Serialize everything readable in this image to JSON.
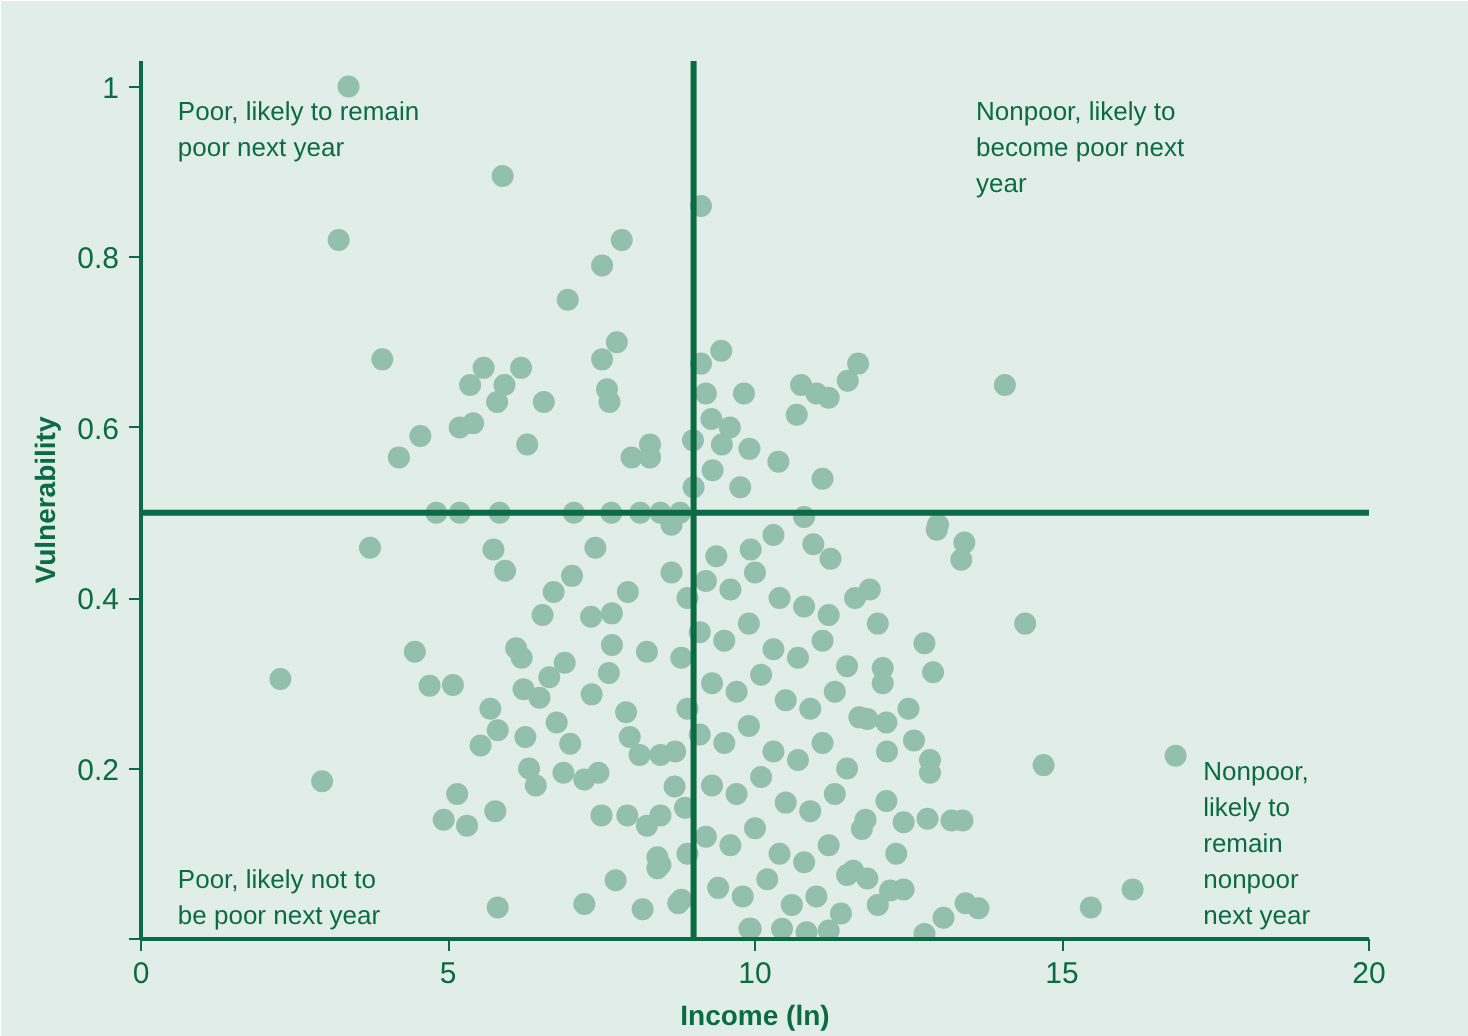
{
  "chart_data": {
    "type": "scatter",
    "xlabel": "Income (ln)",
    "ylabel": "Vulnerability",
    "xlim": [
      0,
      20
    ],
    "ylim": [
      0,
      1.03
    ],
    "xticks": [
      0,
      5,
      10,
      15,
      20
    ],
    "yticks": [
      {
        "value": 0,
        "label": null
      },
      {
        "value": 0.2,
        "label": "0.2"
      },
      {
        "value": 0.4,
        "label": "0.4"
      },
      {
        "value": 0.6,
        "label": "0.6"
      },
      {
        "value": 0.8,
        "label": "0.8"
      },
      {
        "value": 1,
        "label": "1"
      }
    ],
    "marker": "circle",
    "ref_lines": [
      {
        "axis": "x",
        "value": 9,
        "color": "#0b6b45"
      },
      {
        "axis": "y",
        "value": 0.5,
        "color": "#0b6b45"
      }
    ],
    "annotations": [
      "Poor, likely to remain poor next year",
      "Nonpoor, likely to become poor next year",
      "Poor, likely not to be poor next year",
      "Nonpoor, likely to remain nonpoor next year"
    ],
    "series": [
      {
        "color": "#93bfae",
        "x": [
          3.38,
          3.22,
          5.89,
          9.12,
          7.83,
          7.51,
          6.95,
          3.93,
          7.75,
          7.51,
          5.58,
          6.19,
          5.36,
          5.92,
          5.8,
          6.56,
          7.59,
          7.63,
          4.55,
          4.2,
          5.19,
          5.41,
          6.29,
          7.99,
          8.29,
          8.29,
          9.45,
          9.12,
          9.2,
          9.82,
          8.99,
          9.29,
          9.59,
          9.46,
          9.91,
          9.31,
          9.76,
          9.0,
          4.81,
          5.19,
          5.84,
          7.05,
          7.66,
          8.13,
          8.46,
          8.78,
          11.68,
          11.51,
          10.75,
          11.2,
          11.0,
          14.07,
          10.68,
          10.38,
          11.1,
          12.98,
          12.96,
          13.41,
          13.36,
          14.4,
          12.76,
          12.9,
          12.08,
          12.08,
          11.63,
          11.87,
          11.23,
          10.95,
          10.3,
          10.8,
          14.7,
          16.85,
          16.15,
          15.47,
          13.64,
          13.43,
          13.07,
          12.76,
          13.38,
          13.2,
          12.81,
          12.42,
          12.85,
          12.85,
          12.59,
          12.15,
          12.14,
          11.83,
          12.14,
          11.74,
          12.42,
          12.2,
          11.83,
          11.5,
          10.84,
          11.2,
          9.93,
          10.44,
          8.64,
          8.64,
          9.37,
          9.93,
          8.69,
          8.8,
          8.46,
          3.73,
          5.74,
          5.93,
          7.4,
          7.02,
          6.72,
          6.54,
          7.33,
          7.67,
          7.93,
          4.46,
          2.27,
          4.7,
          5.08,
          6.11,
          6.2,
          5.69,
          5.81,
          5.53,
          6.23,
          6.65,
          6.9,
          6.49,
          6.77,
          6.99,
          6.26,
          6.32,
          6.43,
          6.88,
          7.22,
          7.45,
          7.34,
          7.62,
          7.9,
          7.96,
          7.67,
          8.24,
          8.12,
          8.46,
          2.95,
          5.15,
          4.93,
          5.31,
          5.77,
          7.5,
          7.92,
          8.24,
          8.46,
          8.86,
          7.73,
          8.41,
          8.41,
          8.75,
          5.81,
          7.22,
          8.17,
          9.91,
          9.2,
          9.6,
          10.0,
          10.4,
          10.8,
          11.2,
          9.1,
          9.5,
          9.9,
          10.3,
          10.7,
          11.1,
          11.5,
          9.3,
          9.7,
          10.1,
          10.5,
          10.9,
          11.3,
          11.7,
          9.1,
          9.5,
          9.9,
          10.3,
          10.7,
          11.1,
          11.5,
          9.3,
          9.7,
          10.1,
          10.5,
          10.9,
          11.3,
          11.8,
          9.2,
          9.6,
          10.0,
          10.4,
          10.8,
          11.2,
          11.6,
          9.4,
          9.8,
          10.2,
          10.6,
          11.0,
          11.4,
          12.0,
          8.9,
          8.8,
          8.9,
          8.7,
          8.9,
          12.3,
          12.5,
          12.0
        ],
        "values": [
          1.0,
          0.82,
          0.895,
          0.86,
          0.82,
          0.79,
          0.75,
          0.68,
          0.7,
          0.68,
          0.67,
          0.67,
          0.65,
          0.65,
          0.63,
          0.63,
          0.645,
          0.63,
          0.59,
          0.565,
          0.6,
          0.605,
          0.58,
          0.565,
          0.58,
          0.565,
          0.69,
          0.675,
          0.64,
          0.64,
          0.585,
          0.61,
          0.6,
          0.58,
          0.575,
          0.55,
          0.53,
          0.53,
          0.5,
          0.5,
          0.5,
          0.5,
          0.5,
          0.5,
          0.5,
          0.5,
          0.675,
          0.655,
          0.65,
          0.635,
          0.64,
          0.65,
          0.615,
          0.56,
          0.54,
          0.486,
          0.48,
          0.465,
          0.445,
          0.37,
          0.347,
          0.313,
          0.318,
          0.3,
          0.4,
          0.41,
          0.446,
          0.463,
          0.474,
          0.495,
          0.204,
          0.215,
          0.058,
          0.037,
          0.036,
          0.042,
          0.025,
          0.006,
          0.139,
          0.139,
          0.141,
          0.137,
          0.195,
          0.21,
          0.233,
          0.22,
          0.254,
          0.258,
          0.162,
          0.129,
          0.058,
          0.057,
          0.071,
          0.075,
          0.008,
          0.01,
          0.012,
          0.012,
          0.43,
          0.486,
          0.449,
          0.457,
          0.179,
          0.046,
          0.087,
          0.459,
          0.457,
          0.432,
          0.459,
          0.426,
          0.407,
          0.38,
          0.378,
          0.382,
          0.407,
          0.337,
          0.305,
          0.297,
          0.298,
          0.341,
          0.33,
          0.27,
          0.245,
          0.227,
          0.293,
          0.307,
          0.324,
          0.283,
          0.254,
          0.229,
          0.237,
          0.2,
          0.18,
          0.195,
          0.187,
          0.195,
          0.287,
          0.312,
          0.266,
          0.237,
          0.345,
          0.337,
          0.216,
          0.216,
          0.185,
          0.17,
          0.14,
          0.133,
          0.15,
          0.145,
          0.145,
          0.133,
          0.145,
          0.154,
          0.069,
          0.096,
          0.083,
          0.042,
          0.037,
          0.041,
          0.035,
          0.012,
          0.42,
          0.41,
          0.43,
          0.4,
          0.39,
          0.38,
          0.36,
          0.35,
          0.37,
          0.34,
          0.33,
          0.35,
          0.32,
          0.3,
          0.29,
          0.31,
          0.28,
          0.27,
          0.29,
          0.26,
          0.24,
          0.23,
          0.25,
          0.22,
          0.21,
          0.23,
          0.2,
          0.18,
          0.17,
          0.19,
          0.16,
          0.15,
          0.17,
          0.14,
          0.12,
          0.11,
          0.13,
          0.1,
          0.09,
          0.11,
          0.08,
          0.06,
          0.05,
          0.07,
          0.04,
          0.05,
          0.03,
          0.04,
          0.4,
          0.33,
          0.27,
          0.22,
          0.1,
          0.1,
          0.27,
          0.37
        ]
      }
    ]
  }
}
